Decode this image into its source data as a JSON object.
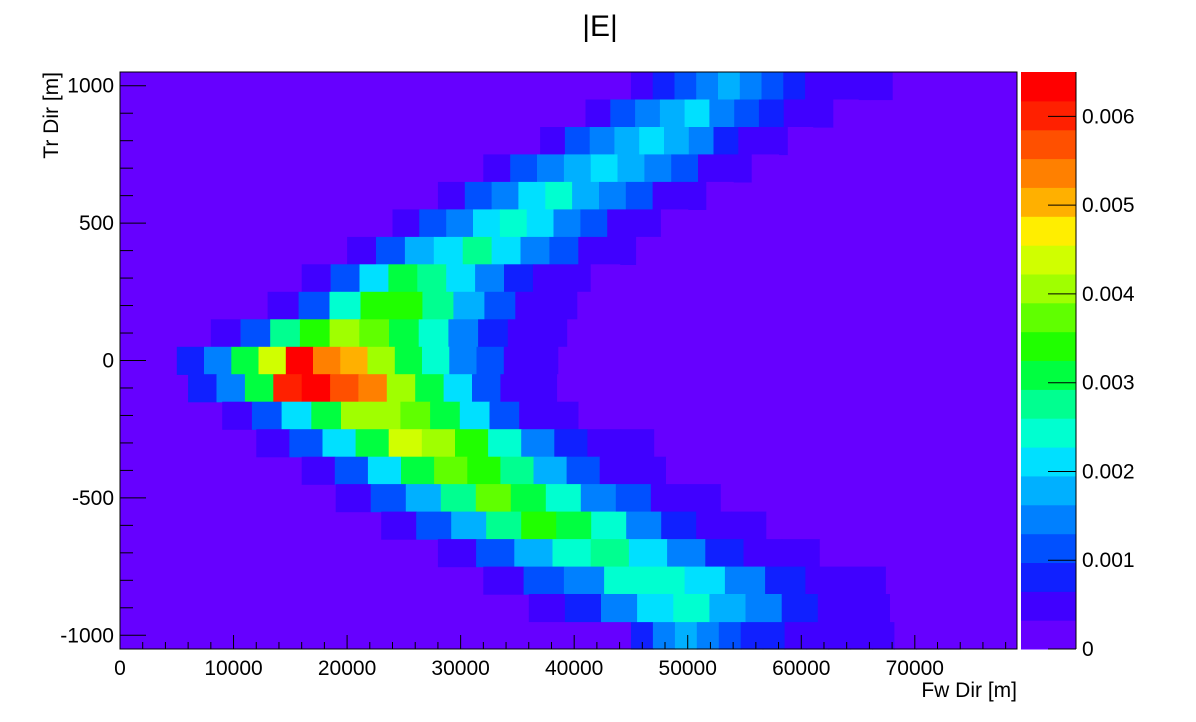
{
  "chart_data": {
    "type": "heatmap",
    "title": "|E|",
    "xlabel": "Fw Dir [m]",
    "ylabel": "Tr Dir [m]",
    "xlim": [
      0,
      79000
    ],
    "ylim": [
      -1050,
      1050
    ],
    "x_ticks": [
      0,
      10000,
      20000,
      30000,
      40000,
      50000,
      60000,
      70000
    ],
    "x_tick_labels": [
      "0",
      "10000",
      "20000",
      "30000",
      "40000",
      "50000",
      "60000",
      "70000"
    ],
    "y_ticks": [
      1000,
      500,
      0,
      -500,
      -1000
    ],
    "y_tick_labels": [
      "1000",
      "500",
      "0",
      "-500",
      "-1000"
    ],
    "z_range": [
      0,
      0.0065
    ],
    "z_ticks": [
      0,
      0.001,
      0.002,
      0.003,
      0.004,
      0.005,
      0.006
    ],
    "z_tick_labels": [
      "0",
      "0.001",
      "0.002",
      "0.003",
      "0.004",
      "0.005",
      "0.006"
    ],
    "palette": [
      "#6600ff",
      "#4000ff",
      "#1020ff",
      "#0050ff",
      "#0080ff",
      "#00b0ff",
      "#00e0ff",
      "#00ffd0",
      "#00ff90",
      "#00ff40",
      "#20ff00",
      "#60ff00",
      "#a0ff00",
      "#d0ff00",
      "#ffee00",
      "#ffb000",
      "#ff8000",
      "#ff5000",
      "#ff2000",
      "#ff0000"
    ],
    "background_value": 0.0001,
    "bands": [
      {
        "y0": -1050,
        "y1": -950,
        "x0": 45000,
        "x1": 74000,
        "cells": [
          [
            0.0008,
            0.0014,
            0.0018,
            0.0016,
            0.0012,
            0.0009,
            0.0007,
            0.0005,
            0.0004,
            0.0004,
            0.0004,
            0.0004,
            0.0003,
            0.0003,
            0.0002
          ]
        ]
      },
      {
        "y0": 1050,
        "y1": 950,
        "x0": 45000,
        "x1": 68000,
        "cells": [
          [
            0.0005,
            0.0008,
            0.0011,
            0.0015,
            0.0019,
            0.0015,
            0.0011,
            0.0008,
            0.0005,
            0.0004,
            0.0004,
            0.0004
          ]
        ]
      }
    ],
    "arms": [
      {
        "name": "upper",
        "rows": [
          {
            "y0": 950,
            "y1": 850,
            "x0": 41000,
            "x1": 65000,
            "values": [
              0.0006,
              0.001,
              0.0013,
              0.0017,
              0.002,
              0.0016,
              0.0012,
              0.0009,
              0.0006,
              0.0004,
              0.0003
            ]
          },
          {
            "y0": 850,
            "y1": 750,
            "x0": 37000,
            "x1": 61000,
            "values": [
              0.0006,
              0.001,
              0.0014,
              0.0018,
              0.0021,
              0.0017,
              0.0013,
              0.0009,
              0.0006,
              0.0004,
              0.0003
            ]
          },
          {
            "y0": 750,
            "y1": 650,
            "x0": 32000,
            "x1": 58000,
            "values": [
              0.0005,
              0.001,
              0.0014,
              0.0019,
              0.0022,
              0.0018,
              0.0014,
              0.001,
              0.0006,
              0.0004,
              0.0003
            ]
          },
          {
            "y0": 650,
            "y1": 550,
            "x0": 28000,
            "x1": 54000,
            "values": [
              0.0005,
              0.001,
              0.0015,
              0.002,
              0.0023,
              0.0019,
              0.0014,
              0.001,
              0.0006,
              0.0004,
              0.0003
            ]
          },
          {
            "y0": 550,
            "y1": 450,
            "x0": 24000,
            "x1": 50000,
            "values": [
              0.0005,
              0.001,
              0.0015,
              0.0021,
              0.0024,
              0.002,
              0.0015,
              0.001,
              0.0006,
              0.0004,
              0.0003
            ]
          },
          {
            "y0": 450,
            "y1": 350,
            "x0": 20000,
            "x1": 48000,
            "values": [
              0.0005,
              0.0011,
              0.0017,
              0.0022,
              0.0026,
              0.0022,
              0.0016,
              0.001,
              0.0006,
              0.0004,
              0.0003
            ]
          },
          {
            "y0": 350,
            "y1": 250,
            "x0": 16000,
            "x1": 44000,
            "values": [
              0.0005,
              0.0012,
              0.002,
              0.003,
              0.0027,
              0.0022,
              0.0015,
              0.0009,
              0.0005,
              0.0004,
              0.0003
            ]
          },
          {
            "y0": 250,
            "y1": 150,
            "x0": 13000,
            "x1": 43000,
            "values": [
              0.0005,
              0.0012,
              0.0024,
              0.0034,
              0.0034,
              0.0026,
              0.0018,
              0.001,
              0.0005,
              0.0004,
              0.0003
            ]
          },
          {
            "y0": 150,
            "y1": 50,
            "x0": 8000,
            "x1": 42000,
            "values": [
              0.0005,
              0.0012,
              0.0026,
              0.0034,
              0.0042,
              0.0038,
              0.0032,
              0.0024,
              0.0016,
              0.0009,
              0.0005,
              0.0004,
              0.0003
            ]
          }
        ]
      },
      {
        "name": "center",
        "rows": [
          {
            "y0": 50,
            "y1": -50,
            "x0": 5000,
            "x1": 41000,
            "values": [
              0.0007,
              0.0015,
              0.003,
              0.0045,
              0.0065,
              0.0055,
              0.005,
              0.004,
              0.0032,
              0.0024,
              0.0016,
              0.001,
              0.0006,
              0.0004,
              0.0003
            ]
          },
          {
            "y0": -50,
            "y1": -150,
            "x0": 6000,
            "x1": 41000,
            "values": [
              0.0007,
              0.0015,
              0.003,
              0.006,
              0.0065,
              0.0058,
              0.0055,
              0.0042,
              0.003,
              0.002,
              0.0012,
              0.0006,
              0.0004,
              0.0003
            ]
          }
        ]
      },
      {
        "name": "lower",
        "rows": [
          {
            "y0": -150,
            "y1": -250,
            "x0": 9000,
            "x1": 43000,
            "values": [
              0.0006,
              0.0012,
              0.0022,
              0.003,
              0.004,
              0.0042,
              0.0038,
              0.003,
              0.002,
              0.0012,
              0.0006,
              0.0004,
              0.0003
            ]
          },
          {
            "y0": -250,
            "y1": -350,
            "x0": 12000,
            "x1": 47000,
            "values": [
              0.0006,
              0.0012,
              0.0022,
              0.0032,
              0.0044,
              0.004,
              0.0034,
              0.0024,
              0.0014,
              0.0008,
              0.0005,
              0.0004
            ]
          },
          {
            "y0": -350,
            "y1": -450,
            "x0": 16000,
            "x1": 51000,
            "values": [
              0.0005,
              0.0011,
              0.002,
              0.003,
              0.0038,
              0.0034,
              0.0026,
              0.0018,
              0.0011,
              0.0006,
              0.0004,
              0.0003
            ]
          },
          {
            "y0": -450,
            "y1": -550,
            "x0": 19000,
            "x1": 56000,
            "values": [
              0.0005,
              0.001,
              0.0018,
              0.0026,
              0.0036,
              0.0031,
              0.0024,
              0.0016,
              0.001,
              0.0006,
              0.0004,
              0.0003
            ]
          },
          {
            "y0": -550,
            "y1": -650,
            "x0": 23000,
            "x1": 60000,
            "values": [
              0.0005,
              0.001,
              0.0018,
              0.0026,
              0.0034,
              0.003,
              0.0023,
              0.0015,
              0.0009,
              0.0005,
              0.0004,
              0.0003
            ]
          },
          {
            "y0": -650,
            "y1": -750,
            "x0": 28000,
            "x1": 65000,
            "values": [
              0.0005,
              0.001,
              0.0017,
              0.0024,
              0.0026,
              0.0022,
              0.0015,
              0.0009,
              0.0006,
              0.0004,
              0.0003
            ]
          },
          {
            "y0": -750,
            "y1": -850,
            "x0": 32000,
            "x1": 71000,
            "values": [
              0.0005,
              0.001,
              0.0016,
              0.0023,
              0.0025,
              0.0021,
              0.0014,
              0.0009,
              0.0006,
              0.0004,
              0.0003
            ]
          },
          {
            "y0": -850,
            "y1": -950,
            "x0": 36000,
            "x1": 71000,
            "values": [
              0.0005,
              0.0009,
              0.0015,
              0.0021,
              0.0023,
              0.0019,
              0.0013,
              0.0008,
              0.0005,
              0.0004,
              0.0003
            ]
          }
        ]
      }
    ]
  }
}
